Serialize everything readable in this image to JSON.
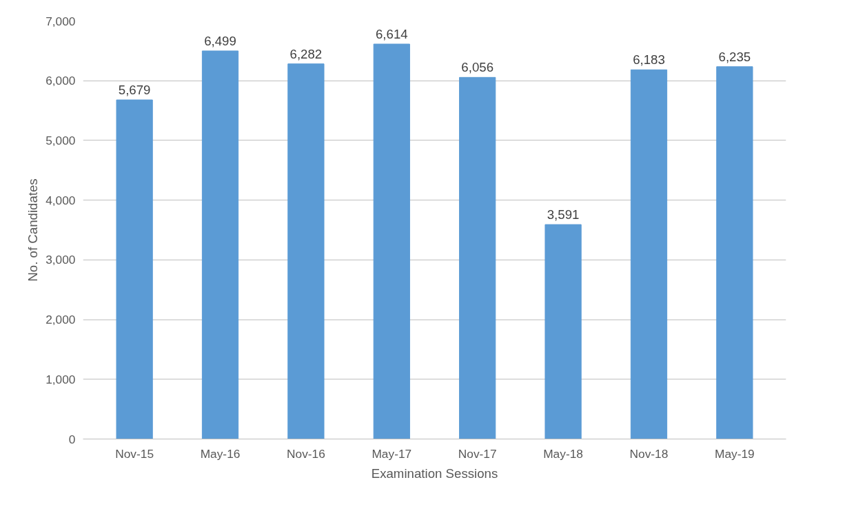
{
  "chart_data": {
    "type": "bar",
    "xlabel": "Examination Sessions",
    "ylabel": "No. of Candidates",
    "categories": [
      "Nov-15",
      "May-16",
      "Nov-16",
      "May-17",
      "Nov-17",
      "May-18",
      "Nov-18",
      "May-19"
    ],
    "values": [
      5679,
      6499,
      6282,
      6614,
      6056,
      3591,
      6183,
      6235
    ],
    "value_labels": [
      "5,679",
      "6,499",
      "6,282",
      "6,614",
      "6,056",
      "3,591",
      "6,183",
      "6,235"
    ],
    "color": "#5b9bd5",
    "ylim": [
      0,
      7000
    ],
    "yticks": [
      0,
      {
        "value": 1000,
        "label": "1,000"
      },
      {
        "value": 2000,
        "label": "2,000"
      },
      {
        "value": 3000,
        "label": "3,000"
      },
      {
        "value": 4000,
        "label": "4,000"
      },
      {
        "value": 5000,
        "label": "5,000"
      },
      {
        "value": 6000,
        "label": "6,000"
      },
      {
        "value": 7000,
        "label": "7,000"
      }
    ],
    "grid": "y"
  }
}
